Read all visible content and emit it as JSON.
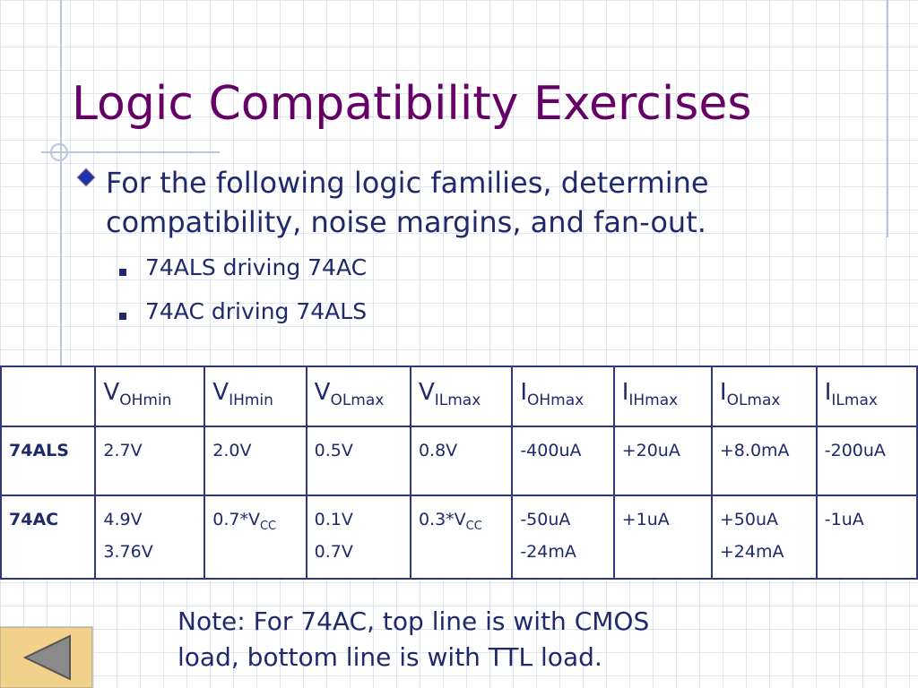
{
  "title": "Logic Compatibility Exercises",
  "bullet": "For the following logic families, determine compatibility, noise margins, and fan-out.",
  "sub_bullets": [
    "74ALS driving 74AC",
    "74AC driving 74ALS"
  ],
  "table": {
    "header": [
      {
        "symbol": "V",
        "sub": "OHmin"
      },
      {
        "symbol": "V",
        "sub": "IHmin"
      },
      {
        "symbol": "V",
        "sub": "OLmax"
      },
      {
        "symbol": "V",
        "sub": "ILmax"
      },
      {
        "symbol": "I",
        "sub": "OHmax"
      },
      {
        "symbol": "I",
        "sub": "IHmax"
      },
      {
        "symbol": "I",
        "sub": "OLmax"
      },
      {
        "symbol": "I",
        "sub": "ILmax"
      }
    ],
    "rows": [
      {
        "label": "74ALS",
        "cells": [
          [
            "2.7V"
          ],
          [
            "2.0V"
          ],
          [
            "0.5V"
          ],
          [
            "0.8V"
          ],
          [
            "-400uA"
          ],
          [
            "+20uA"
          ],
          [
            "+8.0mA"
          ],
          [
            "-200uA"
          ]
        ]
      },
      {
        "label": "74AC",
        "cells": [
          [
            "4.9V",
            "3.76V"
          ],
          [
            {
              "text": "0.7*V",
              "sub": "CC"
            }
          ],
          [
            "0.1V",
            "0.7V"
          ],
          [
            {
              "text": "0.3*V",
              "sub": "CC"
            }
          ],
          [
            "-50uA",
            "-24mA"
          ],
          [
            "+1uA"
          ],
          [
            "+50uA",
            "+24mA"
          ],
          [
            "-1uA"
          ]
        ]
      }
    ]
  },
  "note": "Note: For 74AC, top line is with CMOS load, bottom line is with TTL load."
}
